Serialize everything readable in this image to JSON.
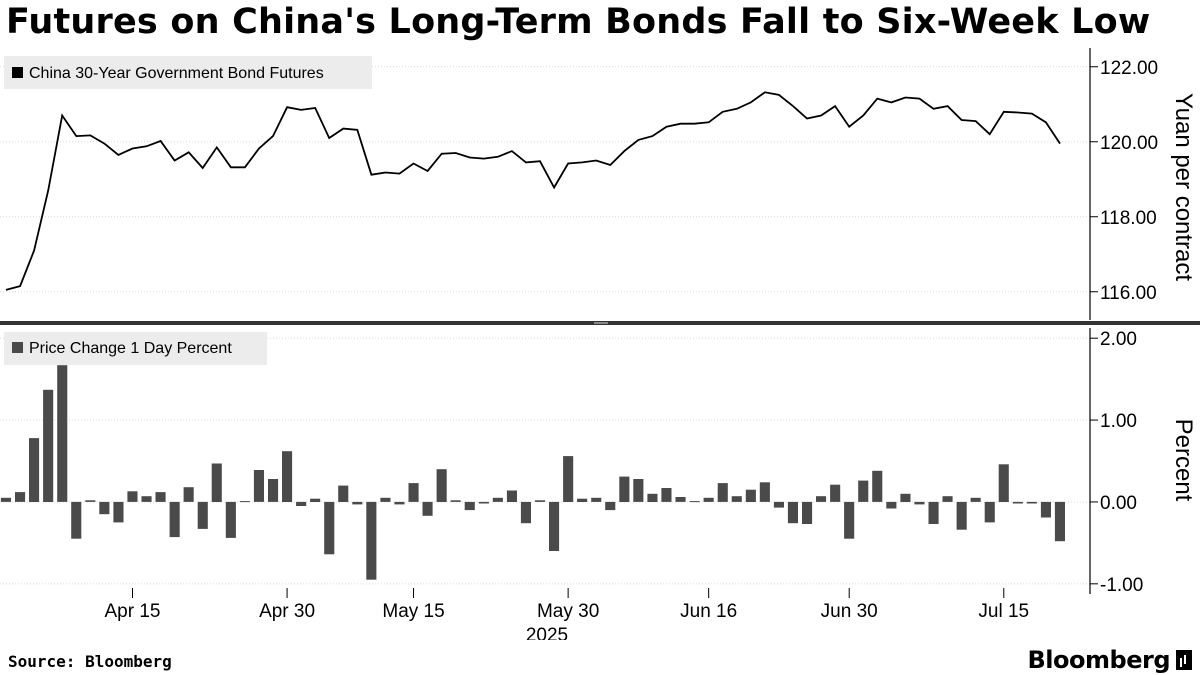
{
  "title": "Futures on China's Long-Term Bonds Fall to Six-Week Low",
  "source": "Source: Bloomberg",
  "brand": "Bloomberg",
  "colors": {
    "line": "#000000",
    "bars": "#4a4a4a",
    "grid": "#d9d9d9",
    "axis": "#000000",
    "legend_bg": "#ececec"
  },
  "chart_data": [
    {
      "type": "line",
      "legend": "China 30-Year Government Bond Futures",
      "ylabel": "Yuan per contract",
      "ylim": [
        115.3,
        122.5
      ],
      "yticks": [
        116,
        118,
        120,
        122
      ],
      "ytick_labels": [
        "116.00",
        "118.00",
        "120.00",
        "122.00"
      ],
      "grid": "horizontal dotted",
      "legend_position": "top-left",
      "values": [
        116.05,
        116.15,
        117.1,
        118.7,
        120.7,
        120.15,
        120.17,
        119.95,
        119.65,
        119.82,
        119.88,
        120.02,
        119.5,
        119.72,
        119.3,
        119.85,
        119.32,
        119.32,
        119.82,
        120.15,
        120.92,
        120.85,
        120.9,
        120.1,
        120.35,
        120.32,
        119.12,
        119.18,
        119.15,
        119.42,
        119.22,
        119.68,
        119.7,
        119.58,
        119.55,
        119.6,
        119.75,
        119.45,
        119.48,
        118.78,
        119.42,
        119.45,
        119.5,
        119.38,
        119.75,
        120.05,
        120.15,
        120.4,
        120.48,
        120.48,
        120.52,
        120.8,
        120.88,
        121.05,
        121.32,
        121.25,
        120.95,
        120.62,
        120.7,
        120.95,
        120.4,
        120.7,
        121.15,
        121.05,
        121.18,
        121.15,
        120.88,
        120.95,
        120.58,
        120.55,
        120.2,
        120.8,
        120.78,
        120.75,
        120.52,
        119.95
      ]
    },
    {
      "type": "bar",
      "legend": "Price Change 1 Day Percent",
      "ylabel": "Percent",
      "ylim": [
        -1.1,
        2.1
      ],
      "yticks": [
        -1,
        0,
        1,
        2
      ],
      "ytick_labels": [
        "-1.00",
        "0.00",
        "1.00",
        "2.00"
      ],
      "grid": "horizontal dotted",
      "legend_position": "top-left",
      "values": [
        0.05,
        0.12,
        0.78,
        1.37,
        1.67,
        -0.45,
        0.02,
        -0.15,
        -0.25,
        0.13,
        0.07,
        0.12,
        -0.43,
        0.18,
        -0.33,
        0.47,
        -0.44,
        0.01,
        0.39,
        0.28,
        0.62,
        -0.05,
        0.04,
        -0.64,
        0.2,
        -0.03,
        -0.95,
        0.05,
        -0.03,
        0.23,
        -0.17,
        0.4,
        0.02,
        -0.1,
        -0.02,
        0.05,
        0.14,
        -0.26,
        0.02,
        -0.6,
        0.56,
        0.04,
        0.05,
        -0.1,
        0.31,
        0.28,
        0.1,
        0.17,
        0.06,
        0.01,
        0.05,
        0.23,
        0.07,
        0.15,
        0.24,
        -0.07,
        -0.26,
        -0.27,
        0.07,
        0.21,
        -0.45,
        0.26,
        0.38,
        -0.08,
        0.1,
        -0.03,
        -0.27,
        0.07,
        -0.34,
        0.05,
        -0.25,
        0.46,
        -0.02,
        -0.02,
        -0.19,
        -0.48
      ]
    }
  ],
  "x_axis": {
    "tick_labels": [
      "Apr 15",
      "Apr 30",
      "May 15",
      "May 30",
      "Jun 16",
      "Jun 30",
      "Jul 15"
    ],
    "tick_index": [
      9,
      20,
      29,
      40,
      50,
      60,
      71
    ],
    "year_label": "2025"
  }
}
